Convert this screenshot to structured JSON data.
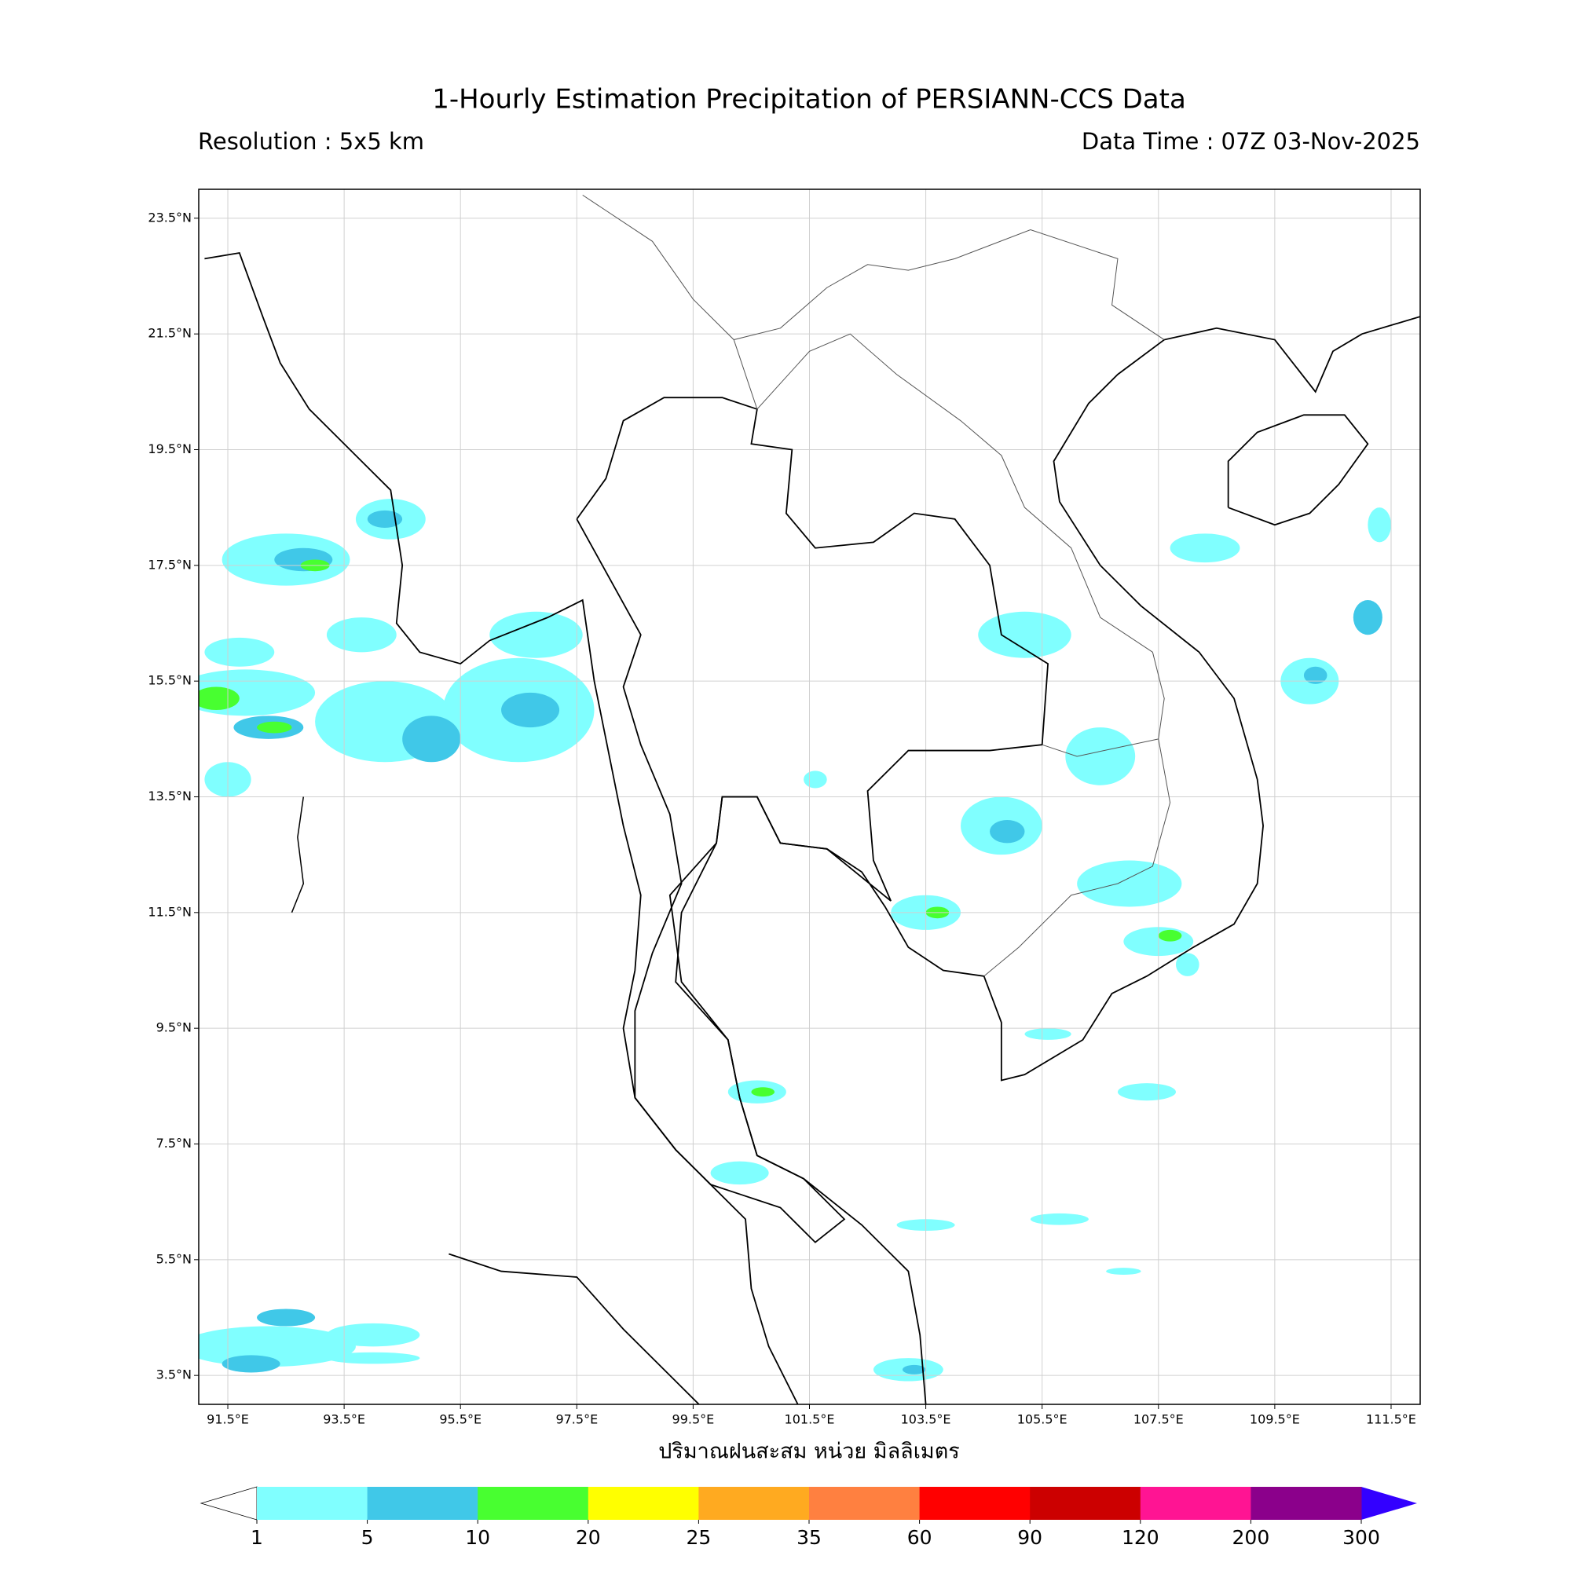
{
  "chart_data": {
    "type": "map",
    "title": "1-Hourly Estimation Precipitation of PERSIANN-CCS Data",
    "subtitle_left": "Resolution : 5x5 km",
    "subtitle_right": "Data Time : 07Z 03-Nov-2025",
    "xlabel": "ปริมาณฝนสะสม หน่วย มิลลิเมตร",
    "xlim": [
      91,
      112
    ],
    "ylim": [
      3,
      24
    ],
    "grid": true,
    "xticks": [
      {
        "value": 91.5,
        "label": "91.5°E"
      },
      {
        "value": 93.5,
        "label": "93.5°E"
      },
      {
        "value": 95.5,
        "label": "95.5°E"
      },
      {
        "value": 97.5,
        "label": "97.5°E"
      },
      {
        "value": 99.5,
        "label": "99.5°E"
      },
      {
        "value": 101.5,
        "label": "101.5°E"
      },
      {
        "value": 103.5,
        "label": "103.5°E"
      },
      {
        "value": 105.5,
        "label": "105.5°E"
      },
      {
        "value": 107.5,
        "label": "107.5°E"
      },
      {
        "value": 109.5,
        "label": "109.5°E"
      },
      {
        "value": 111.5,
        "label": "111.5°E"
      }
    ],
    "yticks": [
      {
        "value": 23.5,
        "label": "23.5°N"
      },
      {
        "value": 21.5,
        "label": "21.5°N"
      },
      {
        "value": 19.5,
        "label": "19.5°N"
      },
      {
        "value": 17.5,
        "label": "17.5°N"
      },
      {
        "value": 15.5,
        "label": "15.5°N"
      },
      {
        "value": 13.5,
        "label": "13.5°N"
      },
      {
        "value": 11.5,
        "label": "11.5°N"
      },
      {
        "value": 9.5,
        "label": "9.5°N"
      },
      {
        "value": 7.5,
        "label": "7.5°N"
      },
      {
        "value": 5.5,
        "label": "5.5°N"
      },
      {
        "value": 3.5,
        "label": "3.5°N"
      }
    ],
    "colorbar": {
      "bounds": [
        1,
        5,
        10,
        20,
        25,
        35,
        60,
        90,
        120,
        200,
        300
      ],
      "colors": [
        "#80ffff",
        "#40c8e8",
        "#48ff30",
        "#ffff00",
        "#ffaa20",
        "#ff8040",
        "#ff0000",
        "#cc0000",
        "#ff1493",
        "#8b008b"
      ],
      "under_color": "#ffffff",
      "over_color": "#3300ff"
    }
  }
}
